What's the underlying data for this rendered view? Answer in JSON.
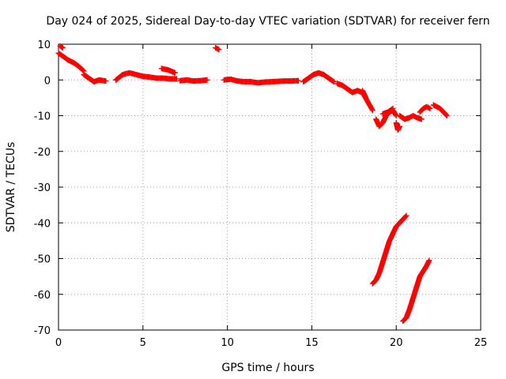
{
  "chart_data": {
    "type": "scatter",
    "title": "Day 024 of 2025, Sidereal Day-to-day VTEC variation (SDTVAR) for receiver fern",
    "xlabel": "GPS time / hours",
    "ylabel": "SDTVAR / TECUs",
    "xlim": [
      0,
      25
    ],
    "ylim": [
      -70,
      10
    ],
    "xticks": [
      0,
      5,
      10,
      15,
      20,
      25
    ],
    "yticks": [
      10,
      0,
      -10,
      -20,
      -30,
      -40,
      -50,
      -60,
      -70
    ],
    "xtick_labels": [
      "0",
      "5",
      "10",
      "15",
      "20",
      "25"
    ],
    "ytick_labels": [
      "10",
      "0",
      "-10",
      "-20",
      "-30",
      "-40",
      "-50",
      "-60",
      "-70"
    ],
    "grid": true,
    "marker": "plus",
    "series": [
      {
        "name": "SDTVAR",
        "color": "#ff0000",
        "segments": [
          {
            "x": [
              0.0,
              0.3,
              0.6,
              0.9,
              1.2,
              1.5
            ],
            "y": [
              7.5,
              6.5,
              5.5,
              4.8,
              3.8,
              2.5
            ]
          },
          {
            "x": [
              0.1,
              0.25
            ],
            "y": [
              9.5,
              9.0
            ]
          },
          {
            "x": [
              1.5,
              1.8,
              2.1,
              2.4,
              2.8
            ],
            "y": [
              1.5,
              0.5,
              -0.5,
              0.0,
              -0.3
            ]
          },
          {
            "x": [
              3.4,
              3.8,
              4.2,
              4.6,
              5.0,
              5.4,
              5.8,
              6.2,
              6.6,
              7.0
            ],
            "y": [
              0.0,
              1.5,
              2.0,
              1.5,
              1.0,
              0.8,
              0.5,
              0.5,
              0.3,
              0.3
            ]
          },
          {
            "x": [
              6.1,
              6.5,
              6.9
            ],
            "y": [
              3.2,
              2.8,
              2.0
            ]
          },
          {
            "x": [
              7.2,
              7.6,
              8.0,
              8.4,
              8.8
            ],
            "y": [
              -0.2,
              0.0,
              -0.3,
              -0.2,
              0.0
            ]
          },
          {
            "x": [
              9.3,
              9.5
            ],
            "y": [
              9.0,
              8.5
            ]
          },
          {
            "x": [
              9.8,
              10.2,
              10.6,
              11.0,
              11.4,
              11.8,
              12.2,
              12.6,
              13.0,
              13.4,
              13.8,
              14.2
            ],
            "y": [
              0.0,
              0.2,
              -0.3,
              -0.5,
              -0.5,
              -0.8,
              -0.6,
              -0.5,
              -0.4,
              -0.3,
              -0.3,
              -0.2
            ]
          },
          {
            "x": [
              14.5,
              14.8,
              15.1,
              15.4,
              15.7,
              16.0,
              16.3
            ],
            "y": [
              -0.5,
              0.5,
              1.5,
              2.0,
              1.5,
              0.5,
              -0.5
            ]
          },
          {
            "x": [
              16.5,
              16.8,
              17.1,
              17.4,
              17.7,
              18.0,
              18.3,
              18.6
            ],
            "y": [
              -1.0,
              -1.5,
              -2.5,
              -3.5,
              -3.0,
              -3.5,
              -6.0,
              -8.5
            ]
          },
          {
            "x": [
              18.0,
              18.1,
              18.2
            ],
            "y": [
              -3.0,
              -4.0,
              -5.0
            ]
          },
          {
            "x": [
              18.8,
              19.0,
              19.2,
              19.4,
              19.6,
              19.8,
              20.0
            ],
            "y": [
              -11.0,
              -13.0,
              -12.0,
              -10.0,
              -9.0,
              -8.5,
              -10.0
            ]
          },
          {
            "x": [
              19.2,
              19.5,
              19.8
            ],
            "y": [
              -9.5,
              -9.0,
              -8.0
            ]
          },
          {
            "x": [
              20.0,
              20.1,
              20.2
            ],
            "y": [
              -12.0,
              -14.0,
              -13.0
            ]
          },
          {
            "x": [
              20.2,
              20.5,
              20.8,
              21.0,
              21.2,
              21.5
            ],
            "y": [
              -10.0,
              -11.0,
              -10.5,
              -10.0,
              -10.5,
              -11.0
            ]
          },
          {
            "x": [
              21.4,
              21.6,
              21.8,
              22.0
            ],
            "y": [
              -9.0,
              -8.0,
              -7.5,
              -8.0
            ]
          },
          {
            "x": [
              22.2,
              22.4,
              22.6,
              22.8,
              23.0
            ],
            "y": [
              -7.0,
              -7.5,
              -8.0,
              -9.0,
              -10.0
            ]
          },
          {
            "x": [
              18.6,
              18.8,
              19.0,
              19.2,
              19.4,
              19.6,
              19.8,
              20.0,
              20.2,
              20.4,
              20.6
            ],
            "y": [
              -57.0,
              -56.0,
              -54.0,
              -51.0,
              -48.0,
              -45.0,
              -43.0,
              -41.0,
              -40.0,
              -39.0,
              -38.0
            ]
          },
          {
            "x": [
              20.4,
              20.6,
              20.8,
              21.0,
              21.2,
              21.4,
              21.6,
              21.8,
              21.95
            ],
            "y": [
              -67.5,
              -66.5,
              -64.0,
              -61.0,
              -58.0,
              -55.0,
              -53.5,
              -52.0,
              -50.5
            ]
          }
        ]
      }
    ]
  }
}
